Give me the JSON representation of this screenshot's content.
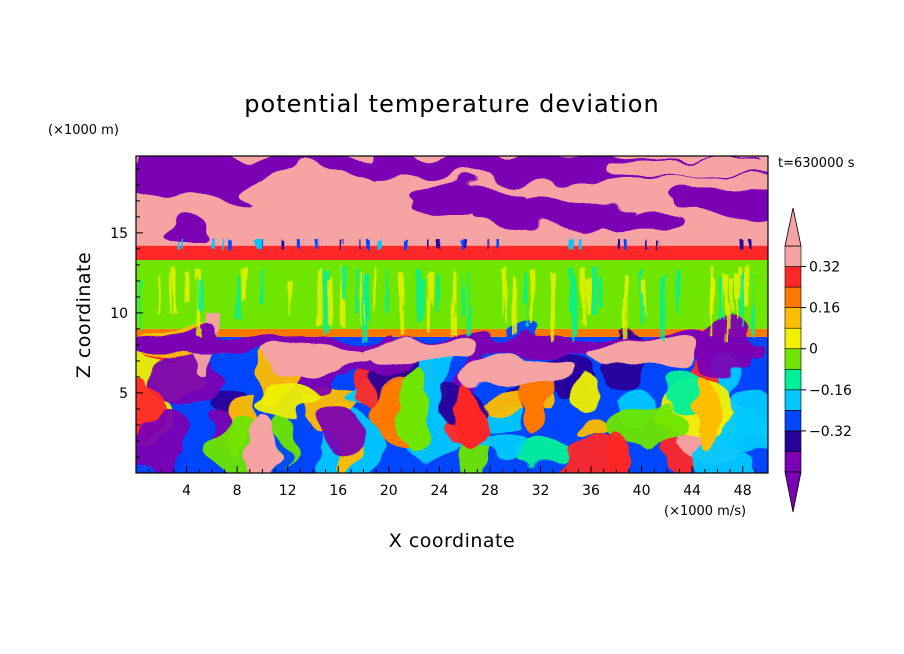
{
  "chart_data": {
    "type": "heatmap",
    "title": "potential temperature deviation",
    "xlabel": "X coordinate",
    "ylabel": "Z coordinate",
    "x_units": "(×1000 m/s)",
    "y_units": "(×1000 m)",
    "time_label": "t=630000 s",
    "xlim": [
      0,
      50
    ],
    "ylim": [
      0,
      19.8
    ],
    "x_ticks": [
      4,
      8,
      12,
      16,
      20,
      24,
      28,
      32,
      36,
      40,
      44,
      48
    ],
    "y_ticks": [
      5,
      10,
      15
    ],
    "colorbar": {
      "levels": [
        -0.4,
        -0.32,
        -0.24,
        -0.16,
        -0.08,
        0,
        0.08,
        0.16,
        0.24,
        0.32,
        0.4
      ],
      "tick_values": [
        0.32,
        0.16,
        0,
        -0.16,
        -0.32
      ],
      "tick_labels": [
        "0.32",
        "0.16",
        "0",
        "−0.16",
        "−0.32"
      ],
      "colors": [
        "#7b00b4",
        "#2a009a",
        "#0046ff",
        "#00c8ff",
        "#00f09a",
        "#6ee600",
        "#f0f000",
        "#ffbe00",
        "#ff7800",
        "#ff2828",
        "#f5a3a3"
      ],
      "extend": "both"
    },
    "layers": [
      {
        "z_range": [
          0,
          8.5
        ],
        "description_level": "mixed -0.4 to 0.4 turbulent eddies"
      },
      {
        "z_range": [
          8.5,
          9.0
        ],
        "level": 0.24
      },
      {
        "z_range": [
          9.0,
          13.3
        ],
        "level": 0.04
      },
      {
        "z_range": [
          13.3,
          14.2
        ],
        "level": 0.32
      },
      {
        "z_range": [
          14.2,
          19.8
        ],
        "level_mixed": [
          -0.4,
          0.4
        ]
      }
    ]
  }
}
